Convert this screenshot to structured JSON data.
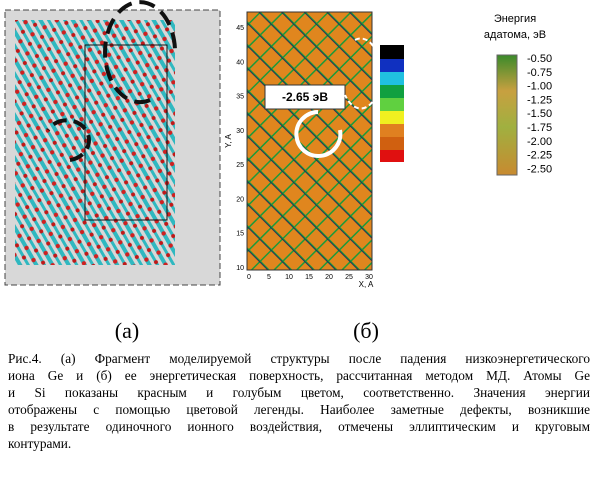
{
  "figure": {
    "panel_a": {
      "label": "(а)"
    },
    "panel_b": {
      "label": "(б)",
      "annotation": "-2.65 эВ",
      "x_axis_label": "X, A",
      "y_axis_label": "Y, A",
      "xticks": [
        0,
        5,
        10,
        15,
        20,
        25,
        30
      ],
      "yticks": [
        45,
        40,
        35,
        30,
        25,
        20,
        15,
        10
      ]
    },
    "legend": {
      "title": [
        "Энергия",
        "адатома, эВ"
      ],
      "labels": [
        "-0.50",
        "-0.75",
        "-1.00",
        "-1.25",
        "-1.50",
        "-1.75",
        "-2.00",
        "-2.25",
        "-2.50"
      ]
    },
    "caption": [
      "Рис.4. (а) Фрагмент моделируемой структуры после падения низкоэнергетического",
      "иона Ge и (б) ее энергетическая поверхность, рассчитанная методом МД. Атомы Ge",
      "и Si показаны красным и голубым цветом, соответственно. Значения энергии",
      "отображены с помощью цветовой легенды. Наиболее заметные дефекты, возникшие",
      "в результате одиночного ионного воздействия, отмечены эллиптическим и круговым",
      "контурами."
    ]
  }
}
